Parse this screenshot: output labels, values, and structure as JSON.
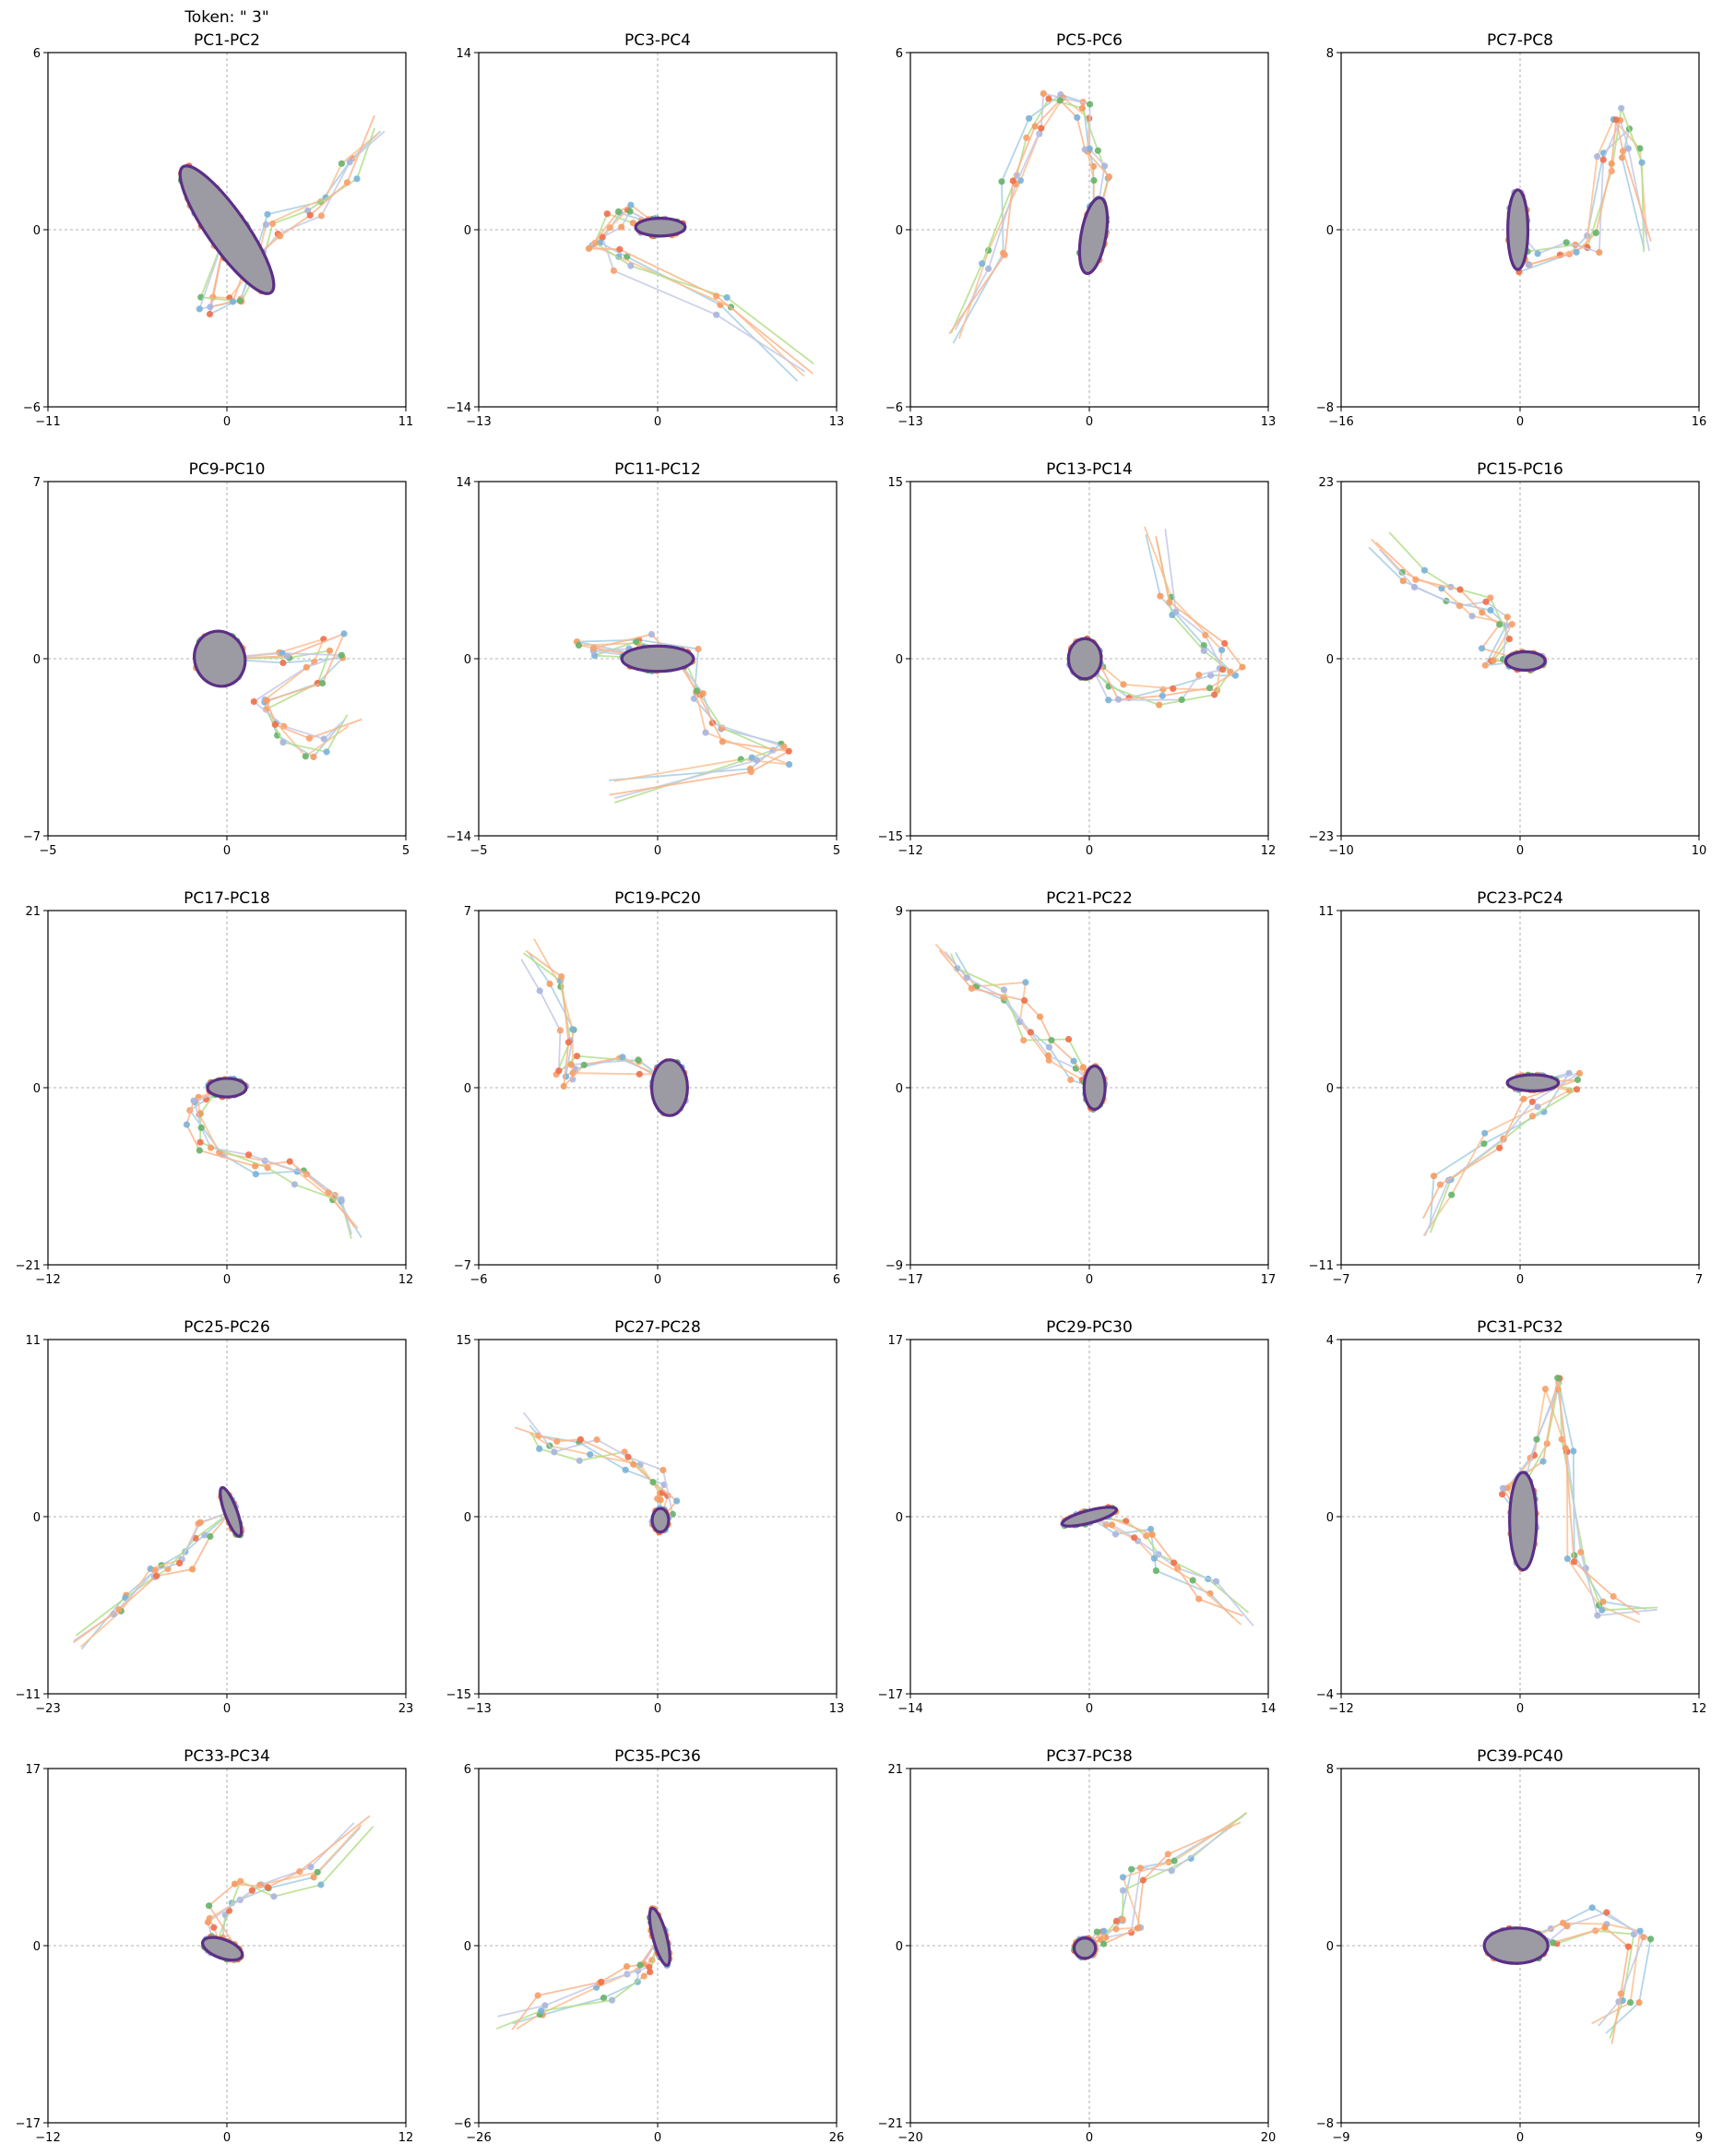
{
  "figure_title": "Token: \" 3\"",
  "chart_data": [
    {
      "type": "line",
      "title": "PC1-PC2",
      "xlim": [
        -11,
        11
      ],
      "ylim": [
        -6,
        6
      ],
      "xticks": [
        "-11",
        "0",
        "11"
      ],
      "yticks": [
        "-6",
        "0",
        "6"
      ],
      "shape": {
        "path": [
          [
            9.2,
            3.5
          ],
          [
            7.5,
            2.0
          ],
          [
            5.5,
            0.8
          ],
          [
            3.0,
            0.2
          ],
          [
            1.5,
            -1.0
          ],
          [
            0.5,
            -2.2
          ],
          [
            -1.5,
            -2.6
          ]
        ],
        "cluster": [
          0.0,
          0.0
        ],
        "rx": 1.2,
        "ry": 2.6,
        "rot": 35
      }
    },
    {
      "type": "line",
      "title": "PC3-PC4",
      "xlim": [
        -13,
        13
      ],
      "ylim": [
        -14,
        14
      ],
      "xticks": [
        "-13",
        "0",
        "13"
      ],
      "yticks": [
        "-14",
        "0",
        "14"
      ],
      "shape": {
        "path": [
          [
            10.5,
            -11.0
          ],
          [
            5.0,
            -6.0
          ],
          [
            -2.5,
            -2.5
          ],
          [
            -4.5,
            -1.0
          ],
          [
            -3.0,
            0.5
          ],
          [
            -1.5,
            1.5
          ]
        ],
        "cluster": [
          0.2,
          0.2
        ],
        "rx": 1.8,
        "ry": 0.7,
        "rot": 0
      }
    },
    {
      "type": "line",
      "title": "PC5-PC6",
      "xlim": [
        -13,
        13
      ],
      "ylim": [
        -6,
        6
      ],
      "xticks": [
        "-13",
        "0",
        "13"
      ],
      "yticks": [
        "-6",
        "0",
        "6"
      ],
      "shape": {
        "path": [
          [
            -10.0,
            -3.5
          ],
          [
            -7.0,
            -1.0
          ],
          [
            -5.5,
            1.5
          ],
          [
            -4.0,
            3.5
          ],
          [
            -2.5,
            4.2
          ],
          [
            -0.5,
            4.0
          ],
          [
            0.5,
            3.0
          ],
          [
            0.8,
            1.8
          ]
        ],
        "cluster": [
          0.3,
          -0.2
        ],
        "rx": 0.9,
        "ry": 1.3,
        "rot": -10
      }
    },
    {
      "type": "line",
      "title": "PC7-PC8",
      "xlim": [
        -16,
        16
      ],
      "ylim": [
        -8,
        8
      ],
      "xticks": [
        "-16",
        "0",
        "16"
      ],
      "yticks": [
        "-8",
        "0",
        "8"
      ],
      "shape": {
        "path": [
          [
            12.0,
            -0.5
          ],
          [
            10.0,
            3.5
          ],
          [
            9.0,
            5.0
          ],
          [
            7.5,
            3.0
          ],
          [
            7.0,
            -0.5
          ],
          [
            4.0,
            -1.0
          ],
          [
            1.0,
            -1.5
          ]
        ],
        "cluster": [
          -0.2,
          0.0
        ],
        "rx": 0.9,
        "ry": 1.8,
        "rot": 0
      }
    },
    {
      "type": "line",
      "title": "PC9-PC10",
      "xlim": [
        -5,
        5
      ],
      "ylim": [
        -7,
        7
      ],
      "xticks": [
        "-5",
        "0",
        "5"
      ],
      "yticks": [
        "-7",
        "0",
        "7"
      ],
      "shape": {
        "path": [
          [
            3.5,
            -2.5
          ],
          [
            2.5,
            -3.5
          ],
          [
            1.5,
            -3.0
          ],
          [
            1.0,
            -2.0
          ],
          [
            2.5,
            -0.5
          ],
          [
            3.0,
            0.5
          ],
          [
            1.5,
            0.3
          ]
        ],
        "cluster": [
          -0.2,
          0.0
        ],
        "rx": 0.7,
        "ry": 1.1,
        "rot": 20
      }
    },
    {
      "type": "line",
      "title": "PC11-PC12",
      "xlim": [
        -5,
        5
      ],
      "ylim": [
        -14,
        14
      ],
      "xticks": [
        "-5",
        "0",
        "5"
      ],
      "yticks": [
        "-14",
        "0",
        "14"
      ],
      "shape": {
        "path": [
          [
            -1.5,
            -10.5
          ],
          [
            2.5,
            -8.5
          ],
          [
            3.5,
            -7.5
          ],
          [
            1.5,
            -6.0
          ],
          [
            1.0,
            -2.5
          ],
          [
            0.8,
            0.5
          ],
          [
            -0.5,
            1.5
          ],
          [
            -2.0,
            1.0
          ]
        ],
        "cluster": [
          0.0,
          0.0
        ],
        "rx": 1.0,
        "ry": 1.0,
        "rot": 0
      }
    },
    {
      "type": "line",
      "title": "PC13-PC14",
      "xlim": [
        -12,
        12
      ],
      "ylim": [
        -15,
        15
      ],
      "xticks": [
        "-12",
        "0",
        "12"
      ],
      "yticks": [
        "-15",
        "0",
        "15"
      ],
      "shape": {
        "path": [
          [
            4.5,
            11.0
          ],
          [
            5.5,
            4.5
          ],
          [
            8.5,
            1.5
          ],
          [
            9.5,
            -0.5
          ],
          [
            8.0,
            -2.0
          ],
          [
            5.5,
            -3.0
          ],
          [
            2.0,
            -2.5
          ],
          [
            0.5,
            -1.5
          ]
        ],
        "cluster": [
          -0.3,
          0.0
        ],
        "rx": 1.1,
        "ry": 1.7,
        "rot": 0
      }
    },
    {
      "type": "line",
      "title": "PC15-PC16",
      "xlim": [
        -10,
        10
      ],
      "ylim": [
        -23,
        23
      ],
      "xticks": [
        "-10",
        "0",
        "10"
      ],
      "yticks": [
        "-23",
        "0",
        "23"
      ],
      "shape": {
        "path": [
          [
            -8.0,
            15.5
          ],
          [
            -6.0,
            10.0
          ],
          [
            -4.0,
            8.0
          ],
          [
            -2.0,
            7.0
          ],
          [
            -1.0,
            4.0
          ],
          [
            -1.5,
            0.5
          ]
        ],
        "cluster": [
          0.3,
          -0.3
        ],
        "rx": 1.1,
        "ry": 1.2,
        "rot": 0
      }
    },
    {
      "type": "line",
      "title": "PC17-PC18",
      "xlim": [
        -12,
        12
      ],
      "ylim": [
        -21,
        21
      ],
      "xticks": [
        "-12",
        "0",
        "12"
      ],
      "yticks": [
        "-21",
        "0",
        "21"
      ],
      "shape": {
        "path": [
          [
            9.0,
            -17.5
          ],
          [
            7.0,
            -13.5
          ],
          [
            5.0,
            -10.0
          ],
          [
            2.0,
            -9.0
          ],
          [
            -1.0,
            -7.5
          ],
          [
            -2.0,
            -4.0
          ],
          [
            -1.5,
            -0.5
          ]
        ],
        "cluster": [
          0.0,
          0.0
        ],
        "rx": 1.3,
        "ry": 1.1,
        "rot": 0
      }
    },
    {
      "type": "line",
      "title": "PC19-PC20",
      "xlim": [
        -6,
        6
      ],
      "ylim": [
        -7,
        7
      ],
      "xticks": [
        "-6",
        "0",
        "6"
      ],
      "yticks": [
        "-7",
        "0",
        "7"
      ],
      "shape": {
        "path": [
          [
            -4.2,
            5.5
          ],
          [
            -3.6,
            4.2
          ],
          [
            -3.2,
            2.0
          ],
          [
            -3.0,
            0.5
          ],
          [
            -2.5,
            0.8
          ],
          [
            -1.0,
            0.8
          ],
          [
            0.5,
            0.5
          ]
        ],
        "cluster": [
          0.4,
          0.0
        ],
        "rx": 0.6,
        "ry": 1.1,
        "rot": 0
      }
    },
    {
      "type": "line",
      "title": "PC21-PC22",
      "xlim": [
        -17,
        17
      ],
      "ylim": [
        -9,
        9
      ],
      "xticks": [
        "-17",
        "0",
        "17"
      ],
      "yticks": [
        "-9",
        "0",
        "9"
      ],
      "shape": {
        "path": [
          [
            -13.5,
            7.0
          ],
          [
            -11.5,
            5.5
          ],
          [
            -7.0,
            5.0
          ],
          [
            -5.5,
            3.0
          ],
          [
            -3.0,
            2.0
          ],
          [
            -1.0,
            1.0
          ]
        ],
        "cluster": [
          0.5,
          0.0
        ],
        "rx": 1.0,
        "ry": 1.1,
        "rot": 0
      }
    },
    {
      "type": "line",
      "title": "PC23-PC24",
      "xlim": [
        -7,
        7
      ],
      "ylim": [
        -11,
        11
      ],
      "xticks": [
        "-7",
        "0",
        "7"
      ],
      "yticks": [
        "-11",
        "0",
        "11"
      ],
      "shape": {
        "path": [
          [
            -4.0,
            -8.5
          ],
          [
            -3.0,
            -6.0
          ],
          [
            -1.0,
            -3.0
          ],
          [
            0.5,
            -1.0
          ],
          [
            2.0,
            0.3
          ]
        ],
        "cluster": [
          0.5,
          0.3
        ],
        "rx": 1.0,
        "ry": 0.5,
        "rot": 0
      }
    },
    {
      "type": "line",
      "title": "PC25-PC26",
      "xlim": [
        -23,
        23
      ],
      "ylim": [
        -11,
        11
      ],
      "xticks": [
        "-23",
        "0",
        "23"
      ],
      "yticks": [
        "-11",
        "0",
        "11"
      ],
      "shape": {
        "path": [
          [
            -19.0,
            -8.0
          ],
          [
            -14.0,
            -5.5
          ],
          [
            -10.0,
            -3.5
          ],
          [
            -6.0,
            -2.5
          ],
          [
            -3.0,
            -1.0
          ]
        ],
        "cluster": [
          0.5,
          0.3
        ],
        "rx": 0.8,
        "ry": 1.6,
        "rot": 20
      }
    },
    {
      "type": "line",
      "title": "PC27-PC28",
      "xlim": [
        -13,
        13
      ],
      "ylim": [
        -15,
        15
      ],
      "xticks": [
        "-13",
        "0",
        "13"
      ],
      "yticks": [
        "-15",
        "0",
        "15"
      ],
      "shape": {
        "path": [
          [
            -10.0,
            8.0
          ],
          [
            -8.0,
            6.5
          ],
          [
            -5.0,
            5.5
          ],
          [
            -2.0,
            4.5
          ],
          [
            0.0,
            3.0
          ],
          [
            0.8,
            1.0
          ]
        ],
        "cluster": [
          0.2,
          -0.3
        ],
        "rx": 0.6,
        "ry": 1.0,
        "rot": 0
      }
    },
    {
      "type": "line",
      "title": "PC29-PC30",
      "xlim": [
        -14,
        14
      ],
      "ylim": [
        -17,
        17
      ],
      "xticks": [
        "-14",
        "0",
        "14"
      ],
      "yticks": [
        "-17",
        "0",
        "17"
      ],
      "shape": {
        "path": [
          [
            12.0,
            -10.0
          ],
          [
            9.0,
            -7.0
          ],
          [
            6.0,
            -4.0
          ],
          [
            4.0,
            -2.0
          ],
          [
            2.0,
            -0.5
          ]
        ],
        "cluster": [
          0.0,
          0.0
        ],
        "rx": 2.2,
        "ry": 0.6,
        "rot": 15
      }
    },
    {
      "type": "line",
      "title": "PC31-PC32",
      "xlim": [
        -12,
        12
      ],
      "ylim": [
        -4,
        4
      ],
      "xticks": [
        "-12",
        "0",
        "12"
      ],
      "yticks": [
        "-4",
        "0",
        "4"
      ],
      "shape": {
        "path": [
          [
            8.5,
            -2.3
          ],
          [
            6.0,
            -2.0
          ],
          [
            4.0,
            -1.0
          ],
          [
            3.0,
            1.5
          ],
          [
            2.5,
            3.0
          ],
          [
            1.0,
            1.5
          ],
          [
            -0.5,
            0.5
          ]
        ],
        "cluster": [
          0.2,
          -0.1
        ],
        "rx": 0.9,
        "ry": 1.1,
        "rot": 0
      }
    },
    {
      "type": "line",
      "title": "PC33-PC34",
      "xlim": [
        -12,
        12
      ],
      "ylim": [
        -17,
        17
      ],
      "xticks": [
        "-12",
        "0",
        "12"
      ],
      "yticks": [
        "-17",
        "0",
        "17"
      ],
      "shape": {
        "path": [
          [
            9.0,
            12.0
          ],
          [
            5.5,
            6.5
          ],
          [
            3.0,
            5.5
          ],
          [
            1.0,
            5.0
          ],
          [
            -0.5,
            3.0
          ],
          [
            -0.3,
            1.0
          ]
        ],
        "cluster": [
          -0.3,
          -0.3
        ],
        "rx": 1.4,
        "ry": 0.9,
        "rot": -20
      }
    },
    {
      "type": "line",
      "title": "PC35-PC36",
      "xlim": [
        -26,
        26
      ],
      "ylim": [
        -6,
        6
      ],
      "xticks": [
        "-26",
        "0",
        "26"
      ],
      "yticks": [
        "-6",
        "0",
        "6"
      ],
      "shape": {
        "path": [
          [
            -22.0,
            -2.5
          ],
          [
            -16.0,
            -2.0
          ],
          [
            -8.0,
            -1.5
          ],
          [
            -3.0,
            -1.0
          ],
          [
            -2.0,
            -0.5
          ]
        ],
        "cluster": [
          0.3,
          0.3
        ],
        "rx": 1.0,
        "ry": 1.0,
        "rot": 15
      }
    },
    {
      "type": "line",
      "title": "PC37-PC38",
      "xlim": [
        -20,
        20
      ],
      "ylim": [
        -21,
        21
      ],
      "xticks": [
        "-20",
        "0",
        "20"
      ],
      "yticks": [
        "-21",
        "0",
        "21"
      ],
      "shape": {
        "path": [
          [
            17.0,
            15.0
          ],
          [
            10.0,
            9.5
          ],
          [
            5.0,
            8.0
          ],
          [
            4.5,
            3.0
          ],
          [
            3.0,
            1.5
          ],
          [
            1.0,
            0.3
          ]
        ],
        "cluster": [
          -0.5,
          -0.3
        ],
        "rx": 1.2,
        "ry": 1.2,
        "rot": 0
      }
    },
    {
      "type": "line",
      "title": "PC39-PC40",
      "xlim": [
        -9,
        9
      ],
      "ylim": [
        -8,
        8
      ],
      "xticks": [
        "-9",
        "0",
        "9"
      ],
      "yticks": [
        "-8",
        "0",
        "8"
      ],
      "shape": {
        "path": [
          [
            4.0,
            -4.0
          ],
          [
            5.5,
            -2.5
          ],
          [
            6.0,
            0.5
          ],
          [
            4.0,
            1.2
          ],
          [
            2.0,
            0.6
          ],
          [
            0.5,
            0.3
          ]
        ],
        "cluster": [
          -0.2,
          0.0
        ],
        "rx": 1.6,
        "ry": 0.8,
        "rot": 0
      }
    }
  ]
}
